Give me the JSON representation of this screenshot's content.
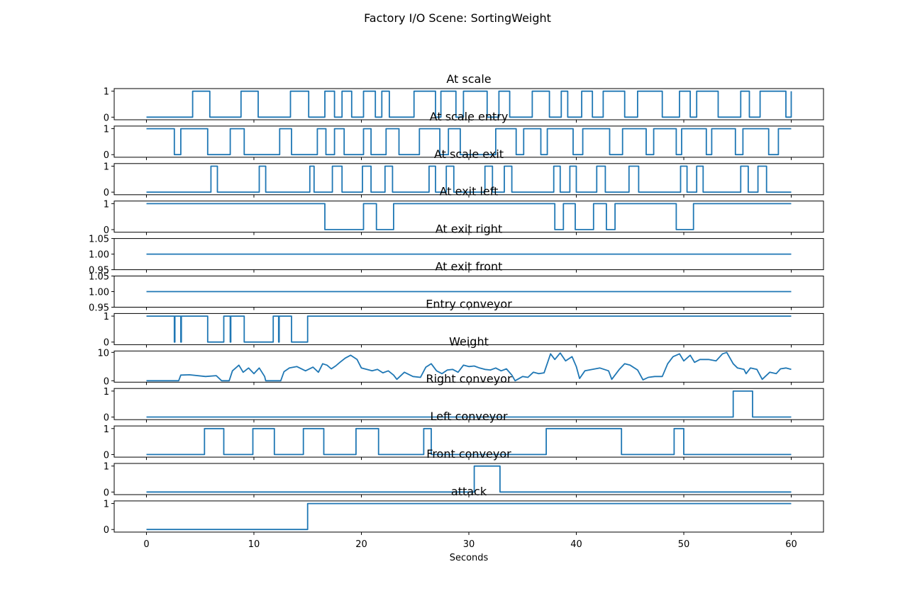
{
  "figure": {
    "suptitle": "Factory I/O Scene: SortingWeight",
    "line_color": "#1f77b4"
  },
  "chart_data": {
    "type": "line",
    "title": "Factory I/O Scene: SortingWeight",
    "xlabel": "Seconds",
    "xlim": [
      -3,
      63
    ],
    "xticks": [
      0,
      10,
      20,
      30,
      40,
      50,
      60
    ],
    "grid": false,
    "panels": [
      {
        "title": "At scale",
        "ylim": [
          -0.1,
          1.1
        ],
        "yticks": [
          0,
          1
        ],
        "step": true,
        "x": [
          0,
          4.3,
          5.9,
          8.8,
          10.4,
          13.4,
          15.1,
          16.6,
          17.5,
          18.2,
          19.1,
          20.2,
          21.3,
          21.9,
          22.6,
          24.9,
          26.9,
          27.4,
          28.8,
          29.5,
          31.7,
          32.8,
          33.8,
          35.9,
          37.5,
          38.6,
          39.2,
          40.5,
          41.5,
          42.5,
          44.5,
          45.7,
          48.0,
          49.6,
          50.6,
          51.2,
          53.2,
          55.3,
          56.1,
          57.1,
          59.5,
          60
        ],
        "y": [
          0,
          1,
          0,
          1,
          0,
          1,
          0,
          1,
          0,
          1,
          0,
          1,
          0,
          1,
          0,
          1,
          0,
          1,
          0,
          1,
          0,
          1,
          0,
          1,
          0,
          1,
          0,
          1,
          0,
          1,
          0,
          1,
          0,
          1,
          0,
          1,
          0,
          1,
          0,
          1,
          0,
          1
        ]
      },
      {
        "title": "At scale entry",
        "ylim": [
          -0.1,
          1.1
        ],
        "yticks": [
          0,
          1
        ],
        "step": true,
        "x": [
          0,
          2.6,
          3.2,
          5.7,
          7.8,
          9.1,
          12.4,
          13.5,
          15.9,
          16.7,
          17.5,
          18.4,
          20.2,
          20.9,
          22.3,
          23.5,
          25.4,
          27.3,
          28.1,
          29.2,
          32.5,
          34.4,
          35.1,
          36.7,
          37.3,
          39.7,
          40.6,
          43.1,
          44.3,
          46.5,
          47.2,
          49.3,
          49.8,
          52.1,
          52.6,
          54.8,
          55.5,
          57.9,
          58.8,
          60
        ],
        "y": [
          1,
          0,
          1,
          0,
          1,
          0,
          1,
          0,
          1,
          0,
          1,
          0,
          1,
          0,
          1,
          0,
          1,
          0,
          1,
          0,
          1,
          0,
          1,
          0,
          1,
          0,
          1,
          0,
          1,
          0,
          1,
          0,
          1,
          0,
          1,
          0,
          1,
          0,
          1,
          1
        ]
      },
      {
        "title": "At scale exit",
        "ylim": [
          -0.1,
          1.1
        ],
        "yticks": [
          0,
          1
        ],
        "step": true,
        "x": [
          0,
          6.0,
          6.6,
          10.5,
          11.1,
          15.2,
          15.6,
          17.3,
          18.2,
          20.1,
          20.9,
          22.2,
          22.9,
          26.3,
          26.9,
          27.9,
          28.6,
          31.5,
          32.2,
          33.3,
          34.0,
          37.9,
          38.5,
          39.4,
          40.0,
          41.9,
          42.7,
          44.9,
          45.8,
          49.7,
          50.3,
          51.2,
          51.8,
          55.3,
          56.0,
          56.9,
          57.7,
          60
        ],
        "y": [
          0,
          1,
          0,
          1,
          0,
          1,
          0,
          1,
          0,
          1,
          0,
          1,
          0,
          1,
          0,
          1,
          0,
          1,
          0,
          1,
          0,
          1,
          0,
          1,
          0,
          1,
          0,
          1,
          0,
          1,
          0,
          1,
          0,
          1,
          0,
          1,
          0,
          0
        ]
      },
      {
        "title": "At exit left",
        "ylim": [
          -0.1,
          1.1
        ],
        "yticks": [
          0,
          1
        ],
        "step": true,
        "x": [
          0,
          16.6,
          20.2,
          21.4,
          23.0,
          38.0,
          38.8,
          39.9,
          41.6,
          42.8,
          43.6,
          49.3,
          50.9,
          60
        ],
        "y": [
          1,
          0,
          1,
          0,
          1,
          0,
          1,
          0,
          1,
          0,
          1,
          0,
          1,
          1
        ]
      },
      {
        "title": "At exit right",
        "ylim": [
          0.95,
          1.05
        ],
        "yticks": [
          0.95,
          1.0,
          1.05
        ],
        "ytick_labels": [
          "0.95",
          "1.00",
          "1.05"
        ],
        "step": true,
        "x": [
          0,
          60
        ],
        "y": [
          1,
          1
        ]
      },
      {
        "title": "At exit front",
        "ylim": [
          0.95,
          1.05
        ],
        "yticks": [
          0.95,
          1.0,
          1.05
        ],
        "ytick_labels": [
          "0.95",
          "1.00",
          "1.05"
        ],
        "step": true,
        "x": [
          0,
          60
        ],
        "y": [
          1,
          1
        ]
      },
      {
        "title": "Entry conveyor",
        "ylim": [
          -0.1,
          1.1
        ],
        "yticks": [
          0,
          1
        ],
        "step": true,
        "x": [
          0,
          2.6,
          2.65,
          3.2,
          3.25,
          5.7,
          7.2,
          7.8,
          7.85,
          9.1,
          11.8,
          12.3,
          12.35,
          13.5,
          15.0,
          60
        ],
        "y": [
          1,
          0,
          1,
          0,
          1,
          0,
          1,
          0,
          1,
          0,
          1,
          0,
          1,
          0,
          1,
          1
        ]
      },
      {
        "title": "Weight",
        "ylim": [
          -0.5,
          10.5
        ],
        "yticks": [
          0,
          10
        ],
        "step": false,
        "x": [
          0,
          3.0,
          3.2,
          4.0,
          5.5,
          6.5,
          7.0,
          7.7,
          8.0,
          8.6,
          9.0,
          9.5,
          10.0,
          10.5,
          11.0,
          11.1,
          12.5,
          12.8,
          13.3,
          14.0,
          14.8,
          15.5,
          16.0,
          16.4,
          16.8,
          17.2,
          17.6,
          18.0,
          18.5,
          19.0,
          19.6,
          20.0,
          20.5,
          21.0,
          21.5,
          22.0,
          22.5,
          23.0,
          23.3,
          24.0,
          24.8,
          25.5,
          26.0,
          26.5,
          27.0,
          27.5,
          28.0,
          28.5,
          29.0,
          29.5,
          30.0,
          30.5,
          31.0,
          31.5,
          32.0,
          32.5,
          33.0,
          33.5,
          34.0,
          34.3,
          35.0,
          35.5,
          36.0,
          36.5,
          37.0,
          37.6,
          38.0,
          38.5,
          39.0,
          39.6,
          40.0,
          40.3,
          40.8,
          41.5,
          42.2,
          43.0,
          43.3,
          44.0,
          44.5,
          45.0,
          45.7,
          46.2,
          46.7,
          47.3,
          48.0,
          48.5,
          49.0,
          49.6,
          50.0,
          50.6,
          51.0,
          51.5,
          52.3,
          53.0,
          53.6,
          54.0,
          54.6,
          55.0,
          55.6,
          55.8,
          56.2,
          56.8,
          57.3,
          58.0,
          58.6,
          59.0,
          59.5,
          60.0
        ],
        "y": [
          0,
          0,
          2,
          2.1,
          1.5,
          1.8,
          0,
          0,
          3.5,
          5.5,
          3.0,
          4.5,
          2.5,
          4.5,
          1.5,
          0,
          0,
          3.2,
          4.5,
          5.0,
          3.5,
          4.8,
          3.0,
          6.0,
          5.5,
          4.2,
          5.2,
          6.5,
          8.0,
          9.0,
          7.5,
          4.5,
          4.0,
          3.5,
          4.0,
          2.8,
          3.5,
          2.0,
          0.5,
          3.0,
          1.5,
          1.2,
          4.8,
          6.0,
          3.5,
          2.5,
          3.8,
          4.0,
          3.0,
          5.5,
          5.0,
          5.2,
          4.5,
          4.0,
          3.8,
          4.5,
          3.5,
          4.2,
          2.0,
          0,
          1.5,
          1.2,
          3.0,
          2.5,
          2.8,
          9.5,
          7.5,
          9.8,
          7.0,
          8.5,
          5.0,
          0.8,
          3.5,
          4.0,
          4.5,
          3.5,
          0.5,
          4.0,
          6.0,
          5.5,
          3.8,
          0.3,
          1.2,
          1.5,
          1.5,
          6.0,
          8.5,
          9.5,
          7.0,
          9.0,
          6.5,
          7.5,
          7.5,
          7.0,
          9.5,
          10.0,
          6.0,
          4.5,
          4.0,
          2.5,
          4.5,
          4.0,
          0.5,
          3.0,
          2.5,
          4.2,
          4.5,
          4.0
        ]
      },
      {
        "title": "Right conveyor",
        "ylim": [
          -0.1,
          1.1
        ],
        "yticks": [
          0,
          1
        ],
        "step": true,
        "x": [
          0,
          54.6,
          56.4,
          60
        ],
        "y": [
          0,
          1,
          0,
          0
        ]
      },
      {
        "title": "Left conveyor",
        "ylim": [
          -0.1,
          1.1
        ],
        "yticks": [
          0,
          1
        ],
        "step": true,
        "x": [
          0,
          5.4,
          7.2,
          9.9,
          11.9,
          14.6,
          16.5,
          19.5,
          21.6,
          25.8,
          26.5,
          37.2,
          44.2,
          49.1,
          50.0,
          60
        ],
        "y": [
          0,
          1,
          0,
          1,
          0,
          1,
          0,
          1,
          0,
          1,
          0,
          1,
          0,
          1,
          0,
          0
        ]
      },
      {
        "title": "Front conveyor",
        "ylim": [
          -0.1,
          1.1
        ],
        "yticks": [
          0,
          1
        ],
        "step": true,
        "x": [
          0,
          30.5,
          32.9,
          60
        ],
        "y": [
          0,
          1,
          0,
          0
        ]
      },
      {
        "title": "attack",
        "ylim": [
          -0.1,
          1.1
        ],
        "yticks": [
          0,
          1
        ],
        "step": true,
        "x": [
          0,
          15.0,
          60
        ],
        "y": [
          0,
          1,
          1
        ]
      }
    ]
  }
}
